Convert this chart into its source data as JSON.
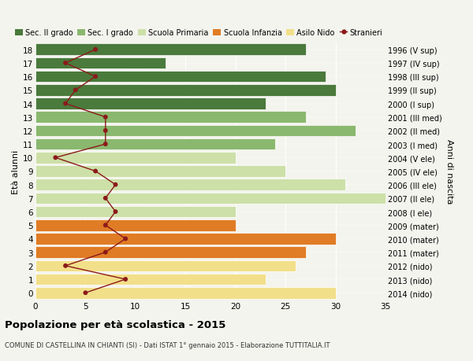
{
  "ages": [
    0,
    1,
    2,
    3,
    4,
    5,
    6,
    7,
    8,
    9,
    10,
    11,
    12,
    13,
    14,
    15,
    16,
    17,
    18
  ],
  "years": [
    "2014 (nido)",
    "2013 (nido)",
    "2012 (nido)",
    "2011 (mater)",
    "2010 (mater)",
    "2009 (mater)",
    "2008 (I ele)",
    "2007 (II ele)",
    "2006 (III ele)",
    "2005 (IV ele)",
    "2004 (V ele)",
    "2003 (I med)",
    "2002 (II med)",
    "2001 (III med)",
    "2000 (I sup)",
    "1999 (II sup)",
    "1998 (III sup)",
    "1997 (IV sup)",
    "1996 (V sup)"
  ],
  "bar_values": [
    30,
    23,
    26,
    27,
    30,
    20,
    20,
    36,
    31,
    25,
    20,
    24,
    32,
    27,
    23,
    30,
    29,
    13,
    27
  ],
  "bar_colors": [
    "#f2df8a",
    "#f2df8a",
    "#f2df8a",
    "#e07c25",
    "#e07c25",
    "#e07c25",
    "#cde0a8",
    "#cde0a8",
    "#cde0a8",
    "#cde0a8",
    "#cde0a8",
    "#8ab86e",
    "#8ab86e",
    "#8ab86e",
    "#4a7a3c",
    "#4a7a3c",
    "#4a7a3c",
    "#4a7a3c",
    "#4a7a3c"
  ],
  "stranieri": [
    5,
    9,
    3,
    7,
    9,
    7,
    8,
    7,
    8,
    6,
    2,
    7,
    7,
    7,
    3,
    4,
    6,
    3,
    6
  ],
  "legend_labels": [
    "Sec. II grado",
    "Sec. I grado",
    "Scuola Primaria",
    "Scuola Infanzia",
    "Asilo Nido",
    "Stranieri"
  ],
  "legend_colors": [
    "#4a7a3c",
    "#8ab86e",
    "#cde0a8",
    "#e07c25",
    "#f2df8a",
    "#8b1a1a"
  ],
  "title": "Popolazione per età scolastica - 2015",
  "subtitle": "COMUNE DI CASTELLINA IN CHIANTI (SI) - Dati ISTAT 1° gennaio 2015 - Elaborazione TUTTITALIA.IT",
  "ylabel_left": "Età alunni",
  "ylabel_right": "Anni di nascita",
  "xlim": [
    0,
    35
  ],
  "bg_color": "#f4f4ee",
  "stranieri_color": "#8b1a1a"
}
